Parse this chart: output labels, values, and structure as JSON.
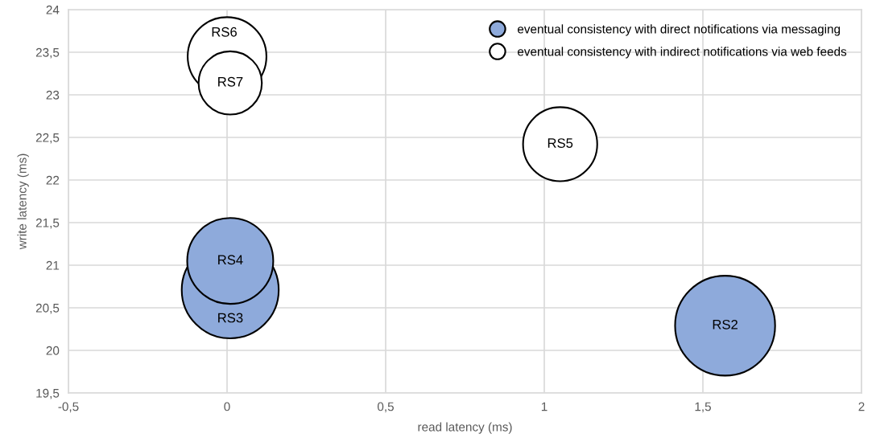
{
  "chart_data": {
    "type": "bubble",
    "xlabel": "read latency (ms)",
    "ylabel": "write latency (ms)",
    "xlim": [
      -0.5,
      2
    ],
    "ylim": [
      19.5,
      24
    ],
    "xticks": [
      {
        "value": -0.5,
        "label": "-0,5"
      },
      0,
      {
        "value": 0.5,
        "label": "0,5"
      },
      1,
      {
        "value": 1.5,
        "label": "1,5"
      },
      2
    ],
    "yticks": [
      {
        "value": 19.5,
        "label": "19,5"
      },
      20,
      {
        "value": 20.5,
        "label": "20,5"
      },
      21,
      {
        "value": 21.5,
        "label": "21,5"
      },
      22,
      {
        "value": 22.5,
        "label": "22,5"
      },
      23,
      {
        "value": 23.5,
        "label": "23,5"
      },
      24
    ],
    "grid": true,
    "legend": "top right",
    "series": [
      {
        "name": "eventual consistency with direct notifications via messaging",
        "color": "#8eaadb",
        "x": [
          1.57,
          0.01,
          0.01
        ],
        "values": [
          20.29,
          20.71,
          21.05
        ],
        "sizes": [
          1,
          0.94,
          0.74
        ],
        "value_labels": [
          "RS2",
          "RS3",
          "RS4"
        ]
      },
      {
        "name": "eventual consistency with indirect notifications via web feeds",
        "color": "#ffffff",
        "x": [
          1.05,
          0.0,
          0.01
        ],
        "values": [
          22.42,
          23.45,
          23.14
        ],
        "sizes": [
          0.55,
          0.62,
          0.4
        ],
        "value_labels": [
          "RS5",
          "RS6",
          "RS7"
        ]
      }
    ]
  }
}
